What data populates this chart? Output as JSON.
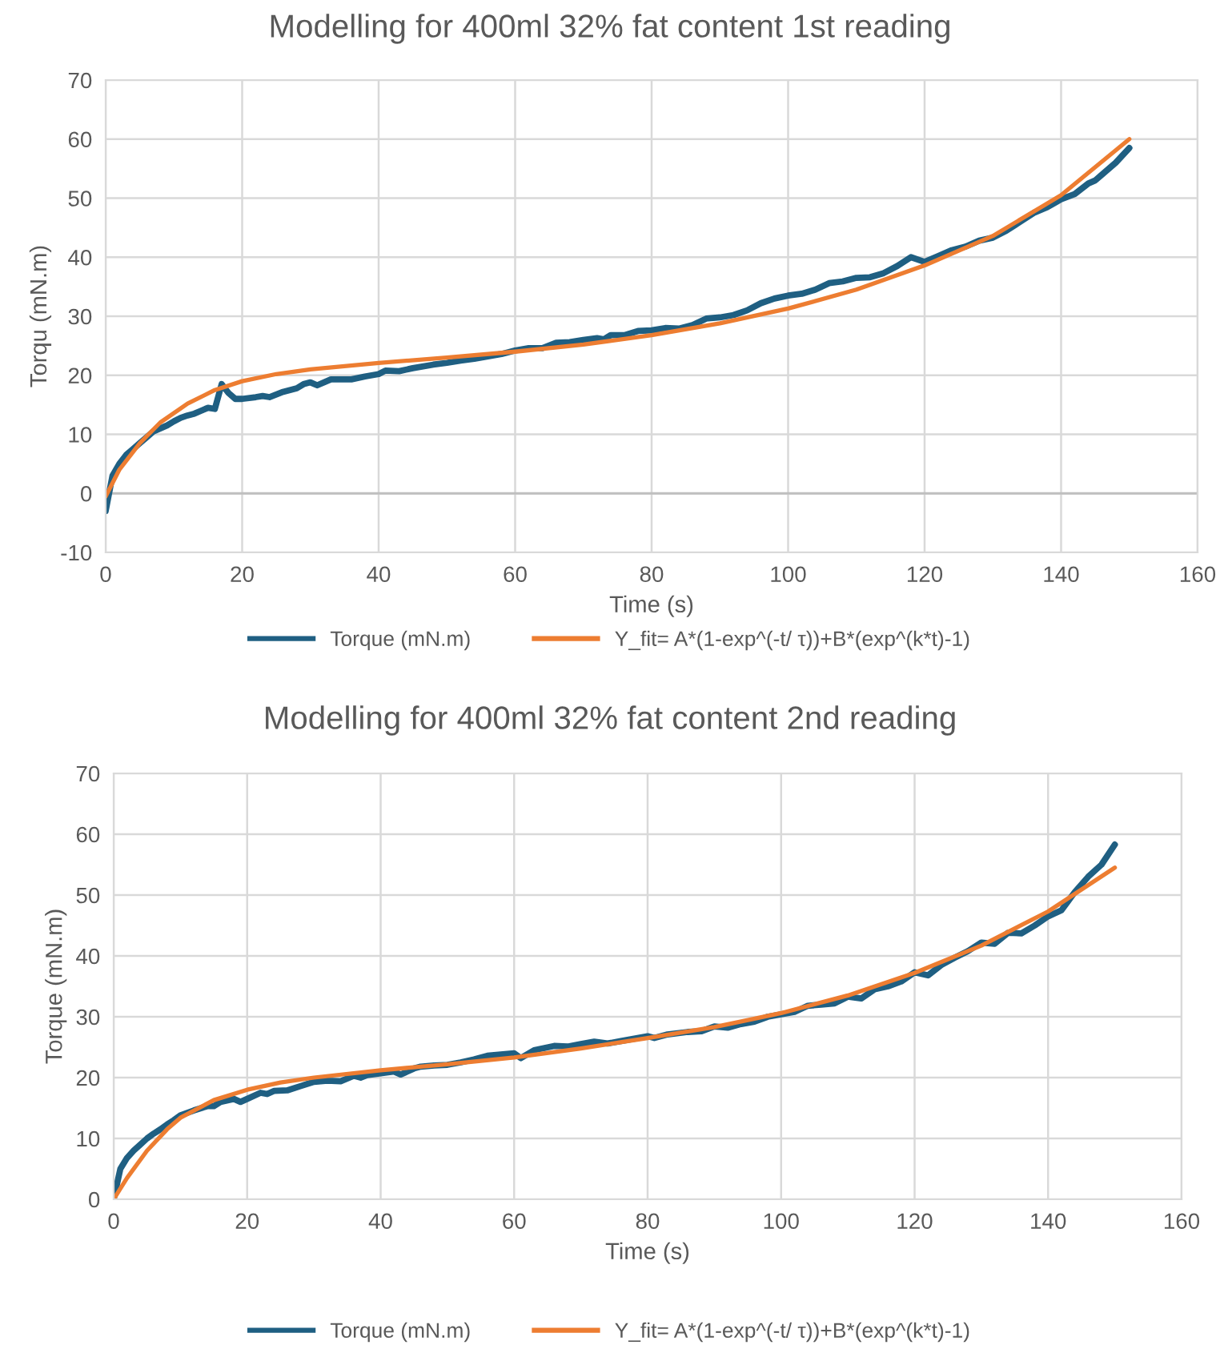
{
  "chart_data": [
    {
      "type": "line",
      "title": "Modelling for 400ml 32% fat content 1st reading",
      "xlabel": "Time (s)",
      "ylabel": "Torqu (mN.m)",
      "xlim": [
        0,
        160
      ],
      "xticks": [
        0,
        20,
        40,
        60,
        80,
        100,
        120,
        140,
        160
      ],
      "ylim": [
        -10,
        70
      ],
      "yticks": [
        -10,
        0,
        10,
        20,
        30,
        40,
        50,
        60,
        70
      ],
      "grid": true,
      "legend": "bottom",
      "line_style": "solid",
      "marker": "none",
      "series": [
        {
          "name": "Torque (mN.m)",
          "color": "#1f5f82",
          "x": [
            0,
            1,
            2,
            3,
            4,
            5,
            6,
            7,
            8,
            9,
            10,
            11,
            12,
            13,
            14,
            15,
            16,
            17,
            18,
            19,
            20,
            22,
            23,
            24,
            26,
            28,
            29,
            30,
            31,
            33,
            36,
            38,
            40,
            41,
            43,
            45,
            48,
            50,
            52,
            54,
            56,
            58,
            60,
            62,
            64,
            66,
            68,
            70,
            72,
            73,
            74,
            76,
            78,
            80,
            82,
            84,
            86,
            88,
            90,
            92,
            94,
            96,
            98,
            100,
            102,
            104,
            106,
            108,
            110,
            112,
            114,
            116,
            118,
            120,
            122,
            124,
            126,
            128,
            130,
            132,
            134,
            136,
            138,
            140,
            142,
            144,
            145,
            146,
            148,
            150
          ],
          "values": [
            -3,
            3,
            5,
            6.5,
            7.5,
            8.5,
            9.5,
            10.5,
            11,
            11.5,
            12.2,
            12.8,
            13.2,
            13.5,
            14,
            14.5,
            14.3,
            18.5,
            17,
            16,
            16,
            16.3,
            16.5,
            16.3,
            17.2,
            17.8,
            18.5,
            18.8,
            18.3,
            19.3,
            19.3,
            19.8,
            20.2,
            20.8,
            20.7,
            21.2,
            21.8,
            22.1,
            22.5,
            22.8,
            23.2,
            23.6,
            24.2,
            24.6,
            24.6,
            25.5,
            25.6,
            26,
            26.3,
            26.1,
            26.8,
            26.8,
            27.5,
            27.6,
            28,
            27.9,
            28.5,
            29.6,
            29.8,
            30.2,
            31,
            32.2,
            33,
            33.5,
            33.8,
            34.5,
            35.6,
            35.9,
            36.5,
            36.6,
            37.3,
            38.5,
            40,
            39.2,
            40.2,
            41.2,
            41.8,
            42.8,
            43.3,
            44.5,
            46,
            47.5,
            48.5,
            49.8,
            50.7,
            52.5,
            53,
            54,
            56,
            58.5
          ]
        },
        {
          "name": "Y_fit= A*(1-exp^(-t/ τ))+B*(exp^(k*t)-1)",
          "color": "#ed7d31",
          "x": [
            0,
            2,
            5,
            8,
            12,
            16,
            20,
            25,
            30,
            40,
            50,
            60,
            70,
            80,
            90,
            100,
            110,
            120,
            130,
            140,
            150
          ],
          "values": [
            -0.5,
            4,
            8.5,
            12,
            15.2,
            17.5,
            19,
            20.2,
            21,
            22.1,
            23,
            24,
            25.2,
            26.8,
            28.8,
            31.3,
            34.5,
            38.6,
            43.6,
            50.5,
            60
          ]
        }
      ]
    },
    {
      "type": "line",
      "title": "Modelling for 400ml 32% fat content 2nd reading",
      "xlabel": "Time (s)",
      "ylabel": "Torque (mN.m)",
      "xlim": [
        0,
        160
      ],
      "xticks": [
        0,
        20,
        40,
        60,
        80,
        100,
        120,
        140,
        160
      ],
      "ylim": [
        0,
        70
      ],
      "yticks": [
        0,
        10,
        20,
        30,
        40,
        50,
        60,
        70
      ],
      "grid": true,
      "legend": "bottom",
      "line_style": "solid",
      "marker": "none",
      "series": [
        {
          "name": "Torque (mN.m)",
          "color": "#1f5f82",
          "x": [
            0,
            1,
            2,
            3,
            4,
            5,
            6,
            7,
            8,
            9,
            10,
            12,
            14,
            15,
            16,
            18,
            19,
            20,
            22,
            23,
            24,
            26,
            28,
            30,
            32,
            34,
            36,
            37,
            38,
            40,
            42,
            43,
            45,
            46,
            48,
            50,
            52,
            54,
            56,
            58,
            60,
            61,
            63,
            66,
            68,
            70,
            72,
            74,
            76,
            78,
            80,
            81,
            83,
            86,
            88,
            90,
            92,
            94,
            96,
            98,
            100,
            102,
            104,
            106,
            108,
            110,
            112,
            114,
            116,
            118,
            120,
            122,
            124,
            126,
            128,
            130,
            132,
            134,
            136,
            138,
            140,
            142,
            143,
            144,
            146,
            148,
            150
          ],
          "values": [
            0,
            5,
            6.8,
            8,
            9,
            10,
            10.8,
            11.5,
            12.3,
            13,
            13.8,
            14.6,
            15.3,
            15.3,
            16,
            16.5,
            16,
            16.5,
            17.5,
            17.3,
            17.8,
            17.9,
            18.6,
            19.3,
            19.5,
            19.4,
            20.3,
            20,
            20.4,
            20.7,
            21,
            20.5,
            21.5,
            21.8,
            22,
            22.1,
            22.5,
            23,
            23.6,
            23.8,
            24,
            23.2,
            24.5,
            25.2,
            25.1,
            25.5,
            25.9,
            25.6,
            26,
            26.4,
            26.8,
            26.5,
            27.1,
            27.5,
            27.6,
            28.4,
            28.2,
            28.8,
            29.2,
            30,
            30.4,
            30.8,
            31.8,
            32,
            32.2,
            33.3,
            33,
            34.5,
            35,
            35.8,
            37.3,
            36.8,
            38.5,
            39.7,
            40.8,
            42.2,
            42,
            43.8,
            43.7,
            45,
            46.5,
            47.5,
            49,
            50.5,
            53,
            55,
            58.3
          ]
        },
        {
          "name": "Y_fit= A*(1-exp^(-t/ τ))+B*(exp^(k*t)-1)",
          "color": "#ed7d31",
          "x": [
            0,
            2,
            5,
            8,
            10,
            15,
            20,
            25,
            30,
            40,
            50,
            60,
            70,
            80,
            90,
            100,
            110,
            120,
            130,
            140,
            150
          ],
          "values": [
            0,
            3.5,
            8,
            11.5,
            13.4,
            16.3,
            18,
            19.2,
            20,
            21.2,
            22.2,
            23.3,
            24.8,
            26.5,
            28.3,
            30.6,
            33.5,
            37.2,
            41.7,
            47.3,
            54.5
          ]
        }
      ]
    }
  ]
}
